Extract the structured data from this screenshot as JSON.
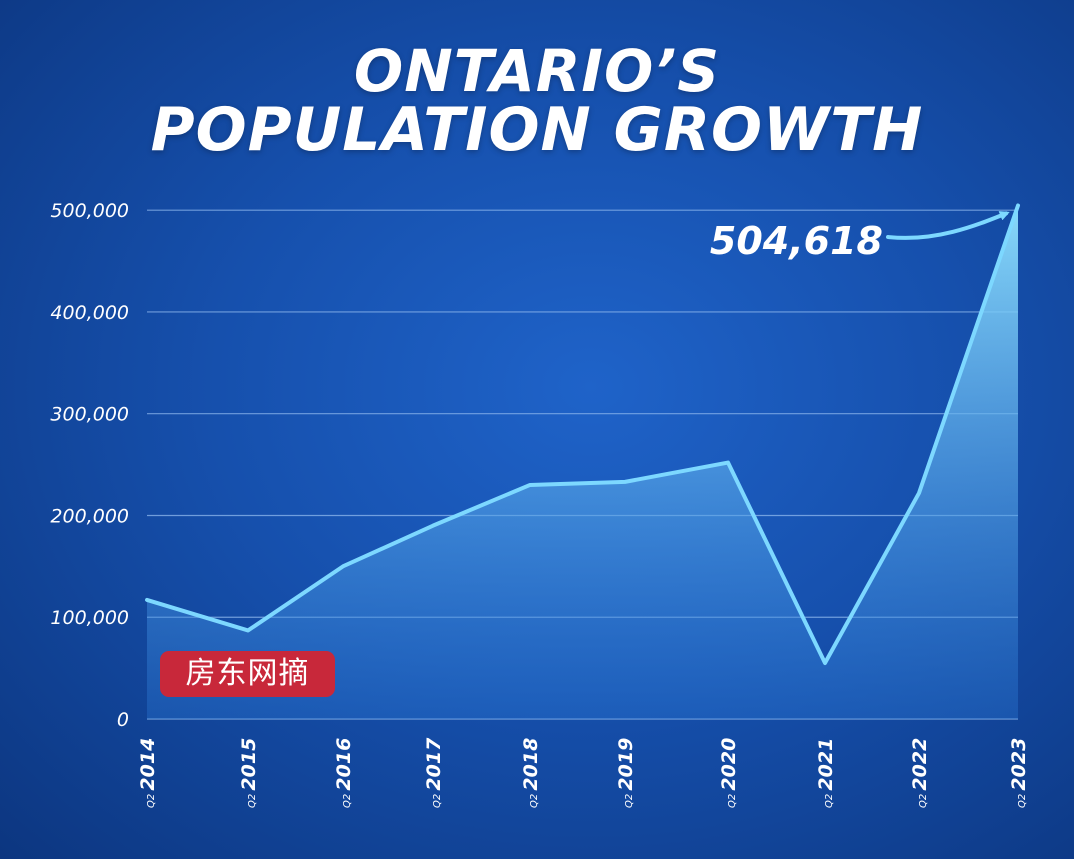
{
  "title_lines": [
    "ONTARIO’S",
    "POPULATION GROWTH"
  ],
  "watermark": "房东网摘",
  "colors": {
    "line": "#7dd8ff",
    "area_top": "#8fe1ff",
    "area_bottom": "#2a78d6",
    "grid": "#8fb8ee",
    "watermark_bg": "#c8283a"
  },
  "chart_data": {
    "type": "area",
    "title": "ONTARIO’S POPULATION GROWTH",
    "xlabel": "",
    "ylabel": "",
    "x_prefix": "Q2",
    "categories": [
      "2014",
      "2015",
      "2016",
      "2017",
      "2018",
      "2019",
      "2020",
      "2021",
      "2022",
      "2023"
    ],
    "values": [
      117000,
      87000,
      150000,
      190000,
      230000,
      233000,
      252000,
      55000,
      222000,
      504618
    ],
    "yticks": [
      0,
      100000,
      200000,
      300000,
      400000,
      500000
    ],
    "ytick_labels": [
      "0",
      "100,000",
      "200,000",
      "300,000",
      "400,000",
      "500,000"
    ],
    "ylim": [
      0,
      510000
    ],
    "grid": true,
    "annotation": {
      "label": "504,618",
      "target_category": "2023",
      "arrow": true
    }
  }
}
